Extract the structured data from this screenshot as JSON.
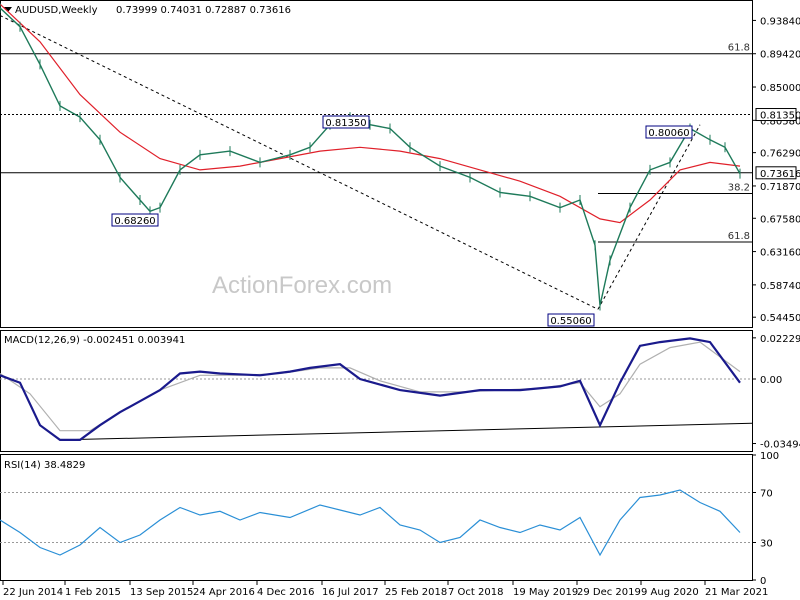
{
  "header": {
    "symbol": "AUDUSD,Weekly",
    "ohlc": "0.73999 0.74031 0.72887 0.73616"
  },
  "watermark": "ActionForex.com",
  "chart_data": [
    {
      "type": "line",
      "title": "AUDUSD,Weekly",
      "scale": {
        "ymin": 0.5315,
        "ymax": 0.9655
      },
      "y_ticks": [
        "0.93840",
        "0.89420",
        "0.85000",
        "0.80580",
        "0.76290",
        "0.71870",
        "0.67580",
        "0.63160",
        "0.58740",
        "0.54450"
      ],
      "x_ticks": [
        "22 Jun 2014",
        "1 Feb 2015",
        "13 Sep 2015",
        "24 Apr 2016",
        "4 Dec 2016",
        "16 Jul 2017",
        "25 Feb 2018",
        "7 Oct 2018",
        "19 May 2019",
        "29 Dec 2019",
        "9 Aug 2020",
        "21 Mar 2021"
      ],
      "current_price": "0.73616",
      "price_path": [
        [
          0,
          0.955
        ],
        [
          20,
          0.93
        ],
        [
          40,
          0.88
        ],
        [
          60,
          0.825
        ],
        [
          80,
          0.81
        ],
        [
          100,
          0.78
        ],
        [
          120,
          0.73
        ],
        [
          140,
          0.7
        ],
        [
          150,
          0.685
        ],
        [
          160,
          0.69
        ],
        [
          180,
          0.74
        ],
        [
          200,
          0.76
        ],
        [
          230,
          0.765
        ],
        [
          260,
          0.75
        ],
        [
          290,
          0.76
        ],
        [
          310,
          0.77
        ],
        [
          330,
          0.8
        ],
        [
          350,
          0.81
        ],
        [
          370,
          0.8
        ],
        [
          390,
          0.795
        ],
        [
          410,
          0.77
        ],
        [
          440,
          0.745
        ],
        [
          470,
          0.73
        ],
        [
          500,
          0.71
        ],
        [
          530,
          0.705
        ],
        [
          560,
          0.69
        ],
        [
          580,
          0.7
        ],
        [
          595,
          0.64
        ],
        [
          600,
          0.56
        ],
        [
          610,
          0.62
        ],
        [
          630,
          0.69
        ],
        [
          650,
          0.74
        ],
        [
          670,
          0.75
        ],
        [
          690,
          0.795
        ],
        [
          710,
          0.78
        ],
        [
          725,
          0.77
        ],
        [
          740,
          0.735
        ]
      ],
      "ma_path": [
        [
          0,
          0.96
        ],
        [
          40,
          0.91
        ],
        [
          80,
          0.84
        ],
        [
          120,
          0.79
        ],
        [
          160,
          0.755
        ],
        [
          200,
          0.74
        ],
        [
          240,
          0.745
        ],
        [
          280,
          0.755
        ],
        [
          320,
          0.765
        ],
        [
          360,
          0.77
        ],
        [
          400,
          0.765
        ],
        [
          440,
          0.755
        ],
        [
          480,
          0.74
        ],
        [
          520,
          0.725
        ],
        [
          560,
          0.705
        ],
        [
          600,
          0.675
        ],
        [
          620,
          0.67
        ],
        [
          650,
          0.7
        ],
        [
          680,
          0.74
        ],
        [
          710,
          0.75
        ],
        [
          740,
          0.745
        ]
      ],
      "horizontal_lines": [
        {
          "value": 0.8942,
          "label": "61.8",
          "style": "solid"
        },
        {
          "value": 0.8135,
          "label": "",
          "style": "dotted"
        },
        {
          "value": 0.73616,
          "label": "",
          "style": "solid"
        },
        {
          "value": 0.7087,
          "label": "38.2",
          "style": "solid"
        },
        {
          "value": 0.6443,
          "label": "61.8",
          "style": "solid"
        }
      ],
      "annotations": [
        {
          "text": "0.68260",
          "x": 150,
          "value": 0.6826
        },
        {
          "text": "0.81350",
          "x": 350,
          "value": 0.8135
        },
        {
          "text": "0.80060",
          "x": 670,
          "value": 0.8006
        },
        {
          "text": "0.55060",
          "x": 570,
          "value": 0.5506
        }
      ],
      "trend_lines": [
        {
          "from": [
            0,
            0.945
          ],
          "to": [
            598,
            0.555
          ],
          "style": "dashed"
        },
        {
          "from": [
            598,
            0.555
          ],
          "to": [
            700,
            0.8
          ],
          "style": "dashed"
        }
      ]
    },
    {
      "type": "line",
      "title": "MACD(12,26,9) -0.002451 0.003941",
      "scale": {
        "ymin": -0.039,
        "ymax": 0.026
      },
      "y_ticks": [
        "0.022295",
        "0.00",
        "-0.034948"
      ],
      "zero_line": 0,
      "macd_path": [
        [
          0,
          0.002
        ],
        [
          20,
          -0.002
        ],
        [
          40,
          -0.025
        ],
        [
          60,
          -0.033
        ],
        [
          80,
          -0.033
        ],
        [
          100,
          -0.025
        ],
        [
          120,
          -0.018
        ],
        [
          140,
          -0.012
        ],
        [
          160,
          -0.006
        ],
        [
          180,
          0.003
        ],
        [
          200,
          0.004
        ],
        [
          220,
          0.003
        ],
        [
          260,
          0.002
        ],
        [
          290,
          0.004
        ],
        [
          310,
          0.006
        ],
        [
          340,
          0.008
        ],
        [
          360,
          0.0
        ],
        [
          400,
          -0.006
        ],
        [
          440,
          -0.009
        ],
        [
          480,
          -0.006
        ],
        [
          520,
          -0.006
        ],
        [
          560,
          -0.004
        ],
        [
          580,
          -0.001
        ],
        [
          600,
          -0.025
        ],
        [
          620,
          -0.002
        ],
        [
          640,
          0.018
        ],
        [
          660,
          0.02
        ],
        [
          690,
          0.022
        ],
        [
          710,
          0.02
        ],
        [
          740,
          -0.002
        ]
      ],
      "signal_path": [
        [
          0,
          0.003
        ],
        [
          30,
          -0.008
        ],
        [
          60,
          -0.028
        ],
        [
          90,
          -0.028
        ],
        [
          120,
          -0.018
        ],
        [
          160,
          -0.006
        ],
        [
          200,
          0.002
        ],
        [
          240,
          0.002
        ],
        [
          280,
          0.003
        ],
        [
          320,
          0.006
        ],
        [
          350,
          0.006
        ],
        [
          380,
          -0.001
        ],
        [
          420,
          -0.007
        ],
        [
          460,
          -0.007
        ],
        [
          500,
          -0.006
        ],
        [
          540,
          -0.005
        ],
        [
          580,
          -0.002
        ],
        [
          600,
          -0.015
        ],
        [
          620,
          -0.008
        ],
        [
          640,
          0.008
        ],
        [
          670,
          0.017
        ],
        [
          700,
          0.02
        ],
        [
          740,
          0.004
        ]
      ],
      "trend_lines": [
        {
          "from": [
            60,
            -0.033
          ],
          "to": [
            752,
            -0.024
          ],
          "style": "solid"
        }
      ]
    },
    {
      "type": "line",
      "title": "RSI(14) 38.4829",
      "scale": {
        "ymin": 0,
        "ymax": 100
      },
      "y_ticks": [
        "100",
        "70",
        "30",
        "0"
      ],
      "levels": [
        70,
        30
      ],
      "rsi_path": [
        [
          0,
          48
        ],
        [
          20,
          38
        ],
        [
          40,
          26
        ],
        [
          60,
          20
        ],
        [
          80,
          28
        ],
        [
          100,
          42
        ],
        [
          120,
          30
        ],
        [
          140,
          36
        ],
        [
          160,
          48
        ],
        [
          180,
          58
        ],
        [
          200,
          52
        ],
        [
          220,
          55
        ],
        [
          240,
          48
        ],
        [
          260,
          54
        ],
        [
          290,
          50
        ],
        [
          320,
          60
        ],
        [
          340,
          56
        ],
        [
          360,
          52
        ],
        [
          380,
          58
        ],
        [
          400,
          44
        ],
        [
          420,
          40
        ],
        [
          440,
          30
        ],
        [
          460,
          34
        ],
        [
          480,
          48
        ],
        [
          500,
          42
        ],
        [
          520,
          38
        ],
        [
          540,
          44
        ],
        [
          560,
          40
        ],
        [
          580,
          50
        ],
        [
          600,
          20
        ],
        [
          620,
          48
        ],
        [
          640,
          66
        ],
        [
          660,
          68
        ],
        [
          680,
          72
        ],
        [
          700,
          62
        ],
        [
          720,
          55
        ],
        [
          740,
          38
        ]
      ]
    }
  ]
}
